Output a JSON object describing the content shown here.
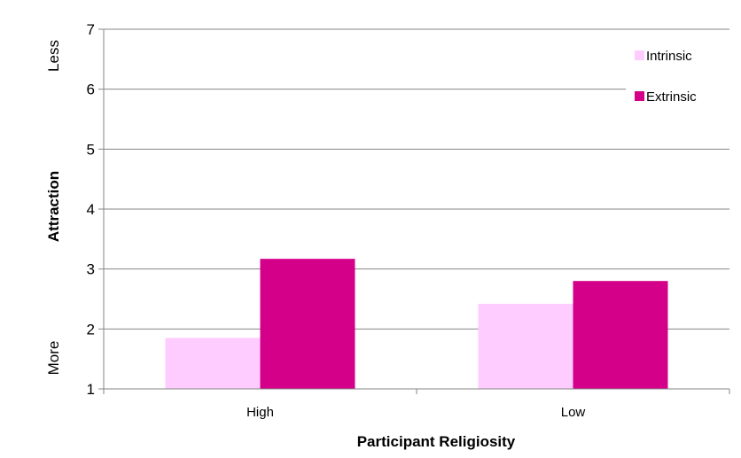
{
  "chart_data": {
    "type": "bar",
    "categories": [
      "High",
      "Low"
    ],
    "series": [
      {
        "name": "Intrinsic",
        "values": [
          1.85,
          2.42
        ],
        "color": "#ffccff"
      },
      {
        "name": "Extrinsic",
        "values": [
          3.17,
          2.8
        ],
        "color": "#d4008a"
      }
    ],
    "xlabel": "Participant Religiosity",
    "ylabel": "Attraction",
    "ylim": [
      1,
      7
    ],
    "yticks": [
      "1",
      "2",
      "3",
      "4",
      "5",
      "6",
      "7"
    ],
    "y_anchor_top": "Less",
    "y_anchor_bottom": "More",
    "grid": true,
    "legend_position": "top-right"
  }
}
